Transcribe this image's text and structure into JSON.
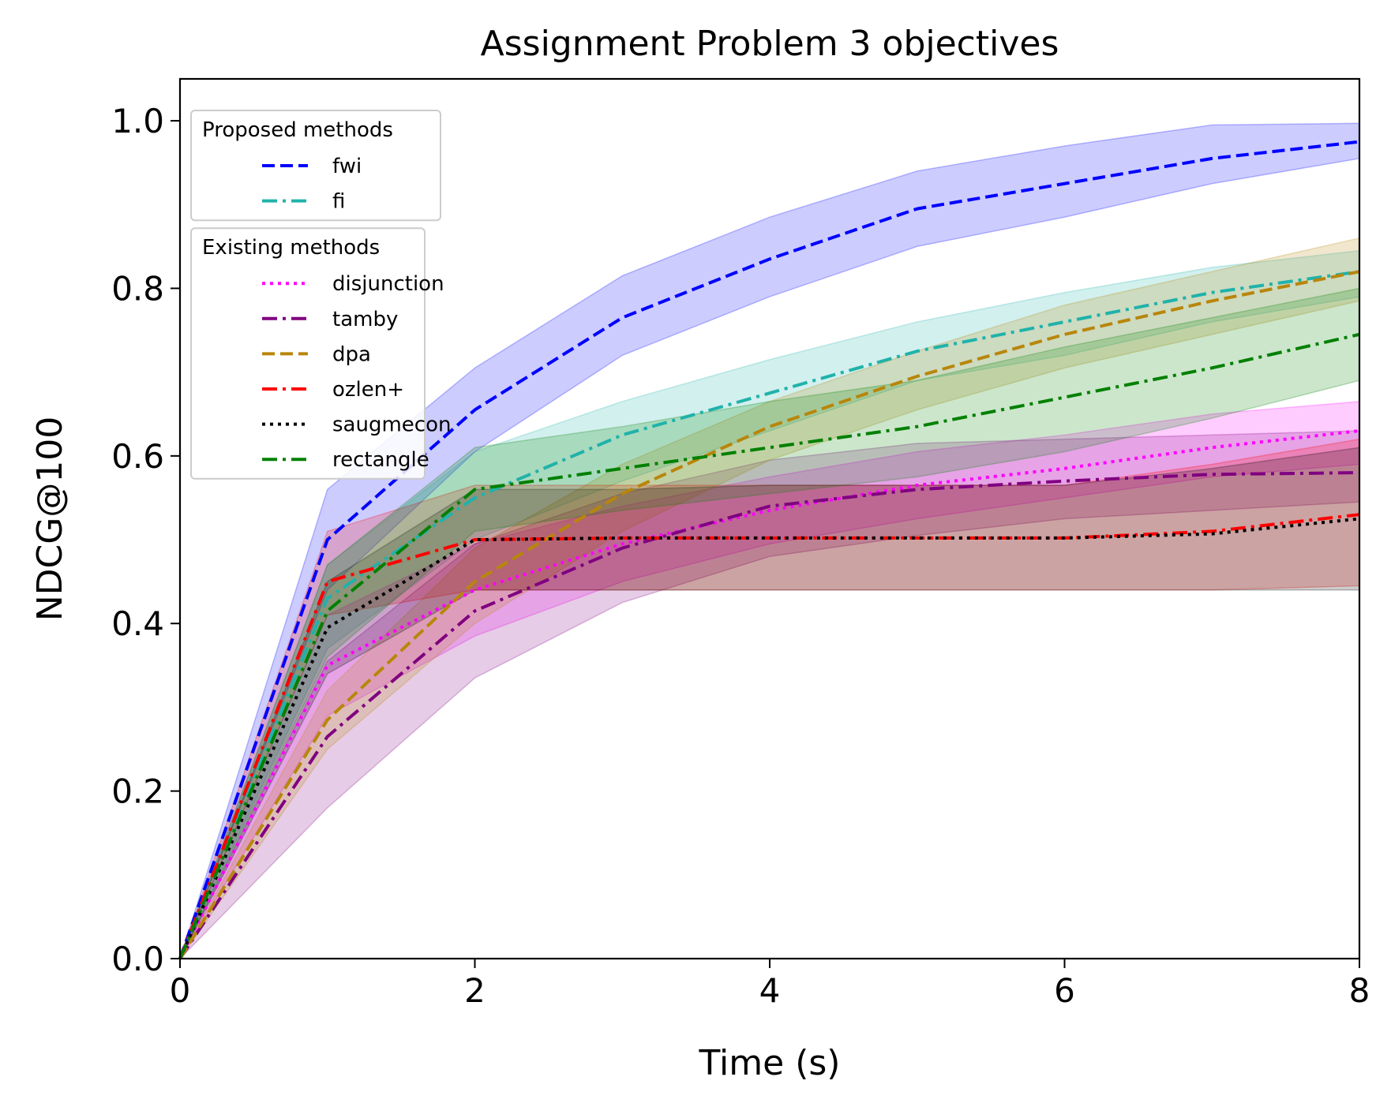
{
  "chart_data": {
    "type": "line",
    "title": "Assignment Problem 3 objectives",
    "xlabel": "Time (s)",
    "ylabel": "NDCG@100",
    "xlim": [
      0,
      8
    ],
    "ylim": [
      0,
      1.05
    ],
    "xticks": [
      "0",
      "2",
      "4",
      "6",
      "8"
    ],
    "yticks": [
      "0.0",
      "0.2",
      "0.4",
      "0.6",
      "0.8",
      "1.0"
    ],
    "grid": false,
    "legend_position": "top-left",
    "legend_groups": [
      {
        "title": "Proposed methods",
        "series": [
          "fwi",
          "fi"
        ]
      },
      {
        "title": "Existing methods",
        "series": [
          "disjunction",
          "tamby",
          "dpa",
          "ozlen+",
          "saugmecon",
          "rectangle"
        ]
      }
    ],
    "x": [
      0,
      1,
      2,
      3,
      4,
      5,
      6,
      7,
      8
    ],
    "series": [
      {
        "name": "fwi",
        "color": "#0000ff",
        "dash": "dashed",
        "values": [
          0,
          0.5,
          0.655,
          0.765,
          0.835,
          0.895,
          0.925,
          0.955,
          0.975
        ],
        "lower": [
          0,
          0.44,
          0.605,
          0.72,
          0.79,
          0.85,
          0.885,
          0.925,
          0.955
        ],
        "upper": [
          0,
          0.56,
          0.705,
          0.815,
          0.885,
          0.94,
          0.97,
          0.995,
          0.997
        ]
      },
      {
        "name": "fi",
        "color": "#20b2aa",
        "dash": "dashdot",
        "values": [
          0,
          0.43,
          0.55,
          0.625,
          0.675,
          0.725,
          0.76,
          0.795,
          0.82
        ],
        "lower": [
          0,
          0.37,
          0.5,
          0.57,
          0.63,
          0.69,
          0.72,
          0.76,
          0.79
        ],
        "upper": [
          0,
          0.47,
          0.605,
          0.665,
          0.715,
          0.76,
          0.795,
          0.825,
          0.845
        ]
      },
      {
        "name": "disjunction",
        "color": "#ff00ff",
        "dash": "dotted",
        "values": [
          0,
          0.35,
          0.44,
          0.495,
          0.535,
          0.565,
          0.585,
          0.61,
          0.63
        ],
        "lower": [
          0,
          0.29,
          0.385,
          0.45,
          0.495,
          0.525,
          0.55,
          0.575,
          0.59
        ],
        "upper": [
          0,
          0.41,
          0.495,
          0.54,
          0.575,
          0.605,
          0.625,
          0.65,
          0.665
        ]
      },
      {
        "name": "tamby",
        "color": "#800080",
        "dash": "dashdot",
        "values": [
          0,
          0.265,
          0.415,
          0.49,
          0.54,
          0.56,
          0.57,
          0.578,
          0.58
        ],
        "lower": [
          0,
          0.18,
          0.335,
          0.425,
          0.48,
          0.505,
          0.525,
          0.535,
          0.545
        ],
        "upper": [
          0,
          0.355,
          0.495,
          0.555,
          0.595,
          0.615,
          0.62,
          0.625,
          0.63
        ]
      },
      {
        "name": "dpa",
        "color": "#b8860b",
        "dash": "dashed",
        "values": [
          0,
          0.285,
          0.45,
          0.555,
          0.635,
          0.695,
          0.745,
          0.785,
          0.82
        ],
        "lower": [
          0,
          0.25,
          0.4,
          0.51,
          0.595,
          0.655,
          0.705,
          0.745,
          0.785
        ],
        "upper": [
          0,
          0.32,
          0.49,
          0.59,
          0.665,
          0.725,
          0.78,
          0.82,
          0.86
        ]
      },
      {
        "name": "ozlen+",
        "color": "#ff0000",
        "dash": "dashdot",
        "values": [
          0,
          0.45,
          0.5,
          0.502,
          0.502,
          0.502,
          0.502,
          0.51,
          0.53
        ],
        "lower": [
          0,
          0.41,
          0.44,
          0.44,
          0.44,
          0.44,
          0.44,
          0.44,
          0.445
        ],
        "upper": [
          0,
          0.51,
          0.565,
          0.565,
          0.565,
          0.565,
          0.565,
          0.59,
          0.62
        ]
      },
      {
        "name": "saugmecon",
        "color": "#000000",
        "dash": "dotted",
        "values": [
          0,
          0.395,
          0.5,
          0.502,
          0.502,
          0.502,
          0.502,
          0.507,
          0.525
        ],
        "lower": [
          0,
          0.34,
          0.44,
          0.44,
          0.44,
          0.44,
          0.44,
          0.44,
          0.44
        ],
        "upper": [
          0,
          0.45,
          0.56,
          0.56,
          0.565,
          0.565,
          0.565,
          0.585,
          0.61
        ]
      },
      {
        "name": "rectangle",
        "color": "#008000",
        "dash": "dashdot",
        "values": [
          0,
          0.415,
          0.56,
          0.585,
          0.61,
          0.635,
          0.67,
          0.705,
          0.745
        ],
        "lower": [
          0,
          0.36,
          0.51,
          0.535,
          0.555,
          0.575,
          0.605,
          0.645,
          0.69
        ],
        "upper": [
          0,
          0.47,
          0.61,
          0.635,
          0.665,
          0.69,
          0.73,
          0.765,
          0.8
        ]
      }
    ]
  }
}
